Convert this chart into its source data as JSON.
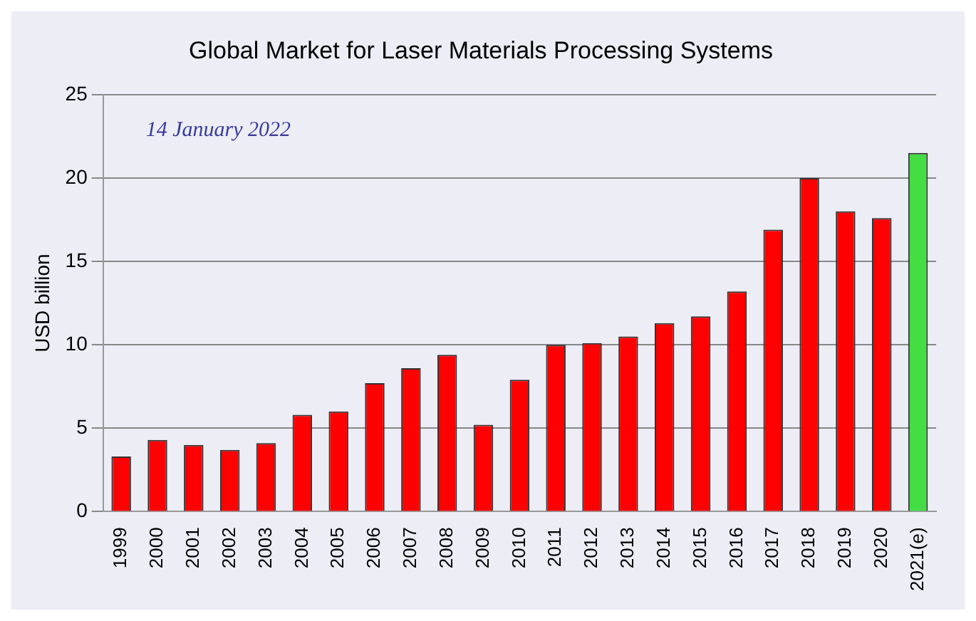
{
  "chart_data": {
    "type": "bar",
    "title": "Global Market for Laser Materials Processing Systems",
    "ylabel": "USD billion",
    "annotations": [
      "14 January 2022"
    ],
    "categories": [
      "1999",
      "2000",
      "2001",
      "2002",
      "2003",
      "2004",
      "2005",
      "2006",
      "2007",
      "2008",
      "2009",
      "2010",
      "2011",
      "2012",
      "2013",
      "2014",
      "2015",
      "2016",
      "2017",
      "2018",
      "2019",
      "2020",
      "2021(e)"
    ],
    "values": [
      3.3,
      4.3,
      4.0,
      3.7,
      4.1,
      5.8,
      6.0,
      7.7,
      8.6,
      9.4,
      5.2,
      7.9,
      10.0,
      10.1,
      10.5,
      11.3,
      11.7,
      13.2,
      16.9,
      20.0,
      18.0,
      17.6,
      21.5
    ],
    "colors": [
      "#ff0000",
      "#ff0000",
      "#ff0000",
      "#ff0000",
      "#ff0000",
      "#ff0000",
      "#ff0000",
      "#ff0000",
      "#ff0000",
      "#ff0000",
      "#ff0000",
      "#ff0000",
      "#ff0000",
      "#ff0000",
      "#ff0000",
      "#ff0000",
      "#ff0000",
      "#ff0000",
      "#ff0000",
      "#ff0000",
      "#ff0000",
      "#ff0000",
      "#44dd44"
    ],
    "ylim": [
      0,
      25
    ],
    "yticks": [
      0,
      5,
      10,
      15,
      20,
      25
    ],
    "grid": "y",
    "legend": false
  }
}
